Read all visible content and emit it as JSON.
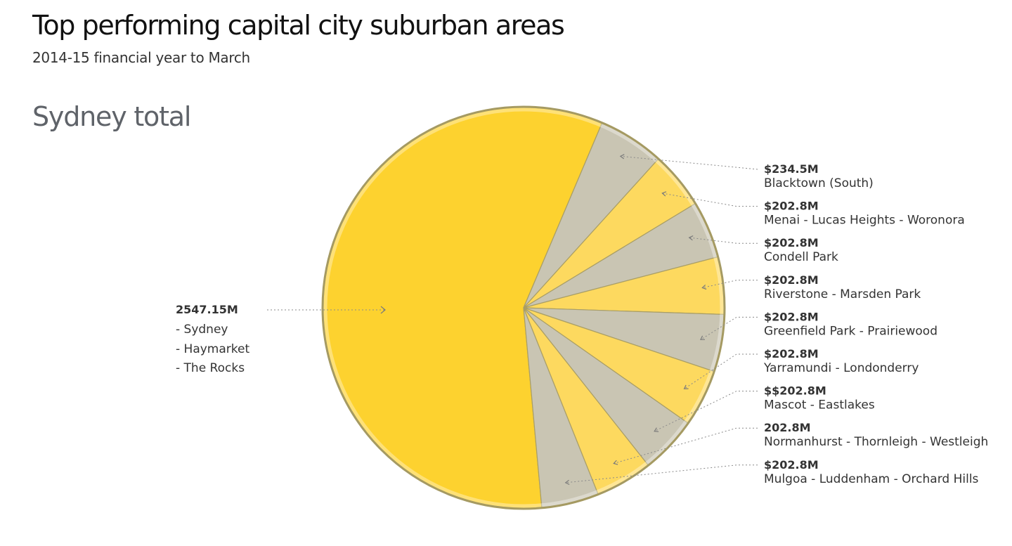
{
  "header": {
    "title": "Top performing capital city suburban areas",
    "subtitle": "2014-15 financial year to March"
  },
  "section": {
    "title": "Sydney total"
  },
  "colors": {
    "main_slice": "#fdd22f",
    "light_slice": "#fdd95f",
    "gray_slice": "#c9c5b3",
    "rim": "#a59a62",
    "separator": "#a99e66"
  },
  "chart_data": {
    "type": "pie",
    "main": {
      "value_label": "2547.15M",
      "value": 2547.15,
      "lines": [
        "- Sydney",
        "- Haymarket",
        "- The Rocks"
      ]
    },
    "slices": [
      {
        "value_label": "$234.5M",
        "value": 234.5,
        "name": "Blacktown (South)",
        "shade": "gray"
      },
      {
        "value_label": "$202.8M",
        "value": 202.8,
        "name": "Menai - Lucas Heights - Woronora",
        "shade": "light"
      },
      {
        "value_label": "$202.8M",
        "value": 202.8,
        "name": "Condell Park",
        "shade": "gray"
      },
      {
        "value_label": "$202.8M",
        "value": 202.8,
        "name": "Riverstone - Marsden Park",
        "shade": "light"
      },
      {
        "value_label": "$202.8M",
        "value": 202.8,
        "name": "Greenfield Park - Prairiewood",
        "shade": "gray"
      },
      {
        "value_label": "$202.8M",
        "value": 202.8,
        "name": "Yarramundi - Londonderry",
        "shade": "light"
      },
      {
        "value_label": "$$202.8M",
        "value": 202.8,
        "name": "Mascot - Eastlakes",
        "shade": "gray"
      },
      {
        "value_label": "202.8M",
        "value": 202.8,
        "name": "Normanhurst - Thornleigh - Westleigh",
        "shade": "light"
      },
      {
        "value_label": "$202.8M",
        "value": 202.8,
        "name": "Mulgoa - Luddenham - Orchard Hills",
        "shade": "gray"
      }
    ]
  }
}
